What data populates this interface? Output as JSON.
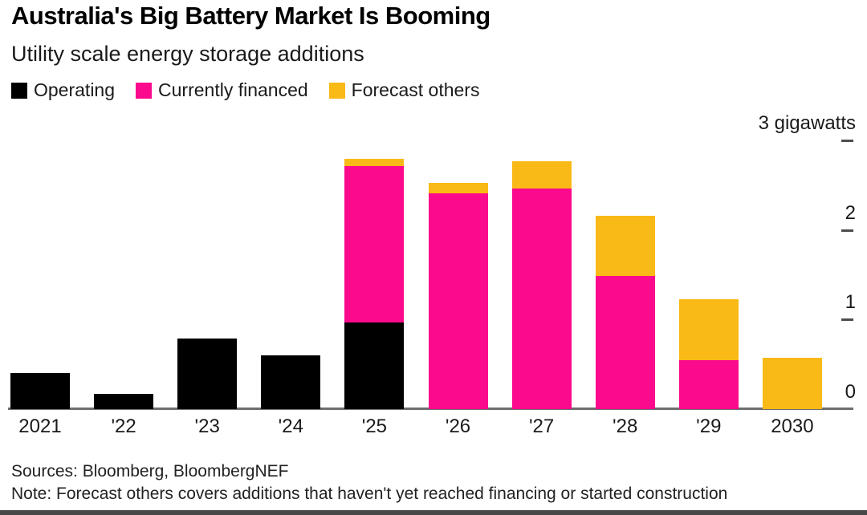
{
  "header": {
    "title": "Australia's Big Battery Market Is Booming",
    "subtitle": "Utility scale energy storage additions"
  },
  "legend": [
    {
      "label": "Operating",
      "color": "#000000",
      "icon": "black-square-swatch"
    },
    {
      "label": "Currently financed",
      "color": "#FB0A8D",
      "icon": "magenta-square-swatch"
    },
    {
      "label": "Forecast others",
      "color": "#F9B916",
      "icon": "gold-square-swatch"
    }
  ],
  "chart_data": {
    "type": "bar",
    "stacked": true,
    "unit": "gigawatts",
    "categories": [
      "2021",
      "'22",
      "'23",
      "'24",
      "'25",
      "'26",
      "'27",
      "'28",
      "'29",
      "2030"
    ],
    "series": [
      {
        "name": "Operating",
        "color": "#000000",
        "values": [
          0.4,
          0.17,
          0.79,
          0.6,
          0.97,
          0,
          0,
          0,
          0,
          0
        ]
      },
      {
        "name": "Currently financed",
        "color": "#FB0A8D",
        "values": [
          0,
          0,
          0,
          0,
          1.75,
          2.41,
          2.46,
          1.49,
          0.55,
          0
        ]
      },
      {
        "name": "Forecast others",
        "color": "#F9B916",
        "values": [
          0,
          0,
          0,
          0,
          0.08,
          0.12,
          0.3,
          0.67,
          0.68,
          0.57
        ]
      }
    ],
    "title": "Australia's Big Battery Market Is Booming",
    "subtitle": "Utility scale energy storage additions",
    "xlabel": "",
    "ylabel": "gigawatts",
    "ylim": [
      0,
      3
    ],
    "yticks": [
      0,
      1,
      2,
      3
    ],
    "ytick_labels": [
      "0",
      "1",
      "2",
      "3 gigawatts"
    ],
    "legend_position": "top",
    "grid": false,
    "axis_side": "right"
  },
  "footer": {
    "sources": "Sources: Bloomberg, BloombergNEF",
    "note": "Note: Forecast others covers additions that haven't yet reached financing or started construction"
  }
}
